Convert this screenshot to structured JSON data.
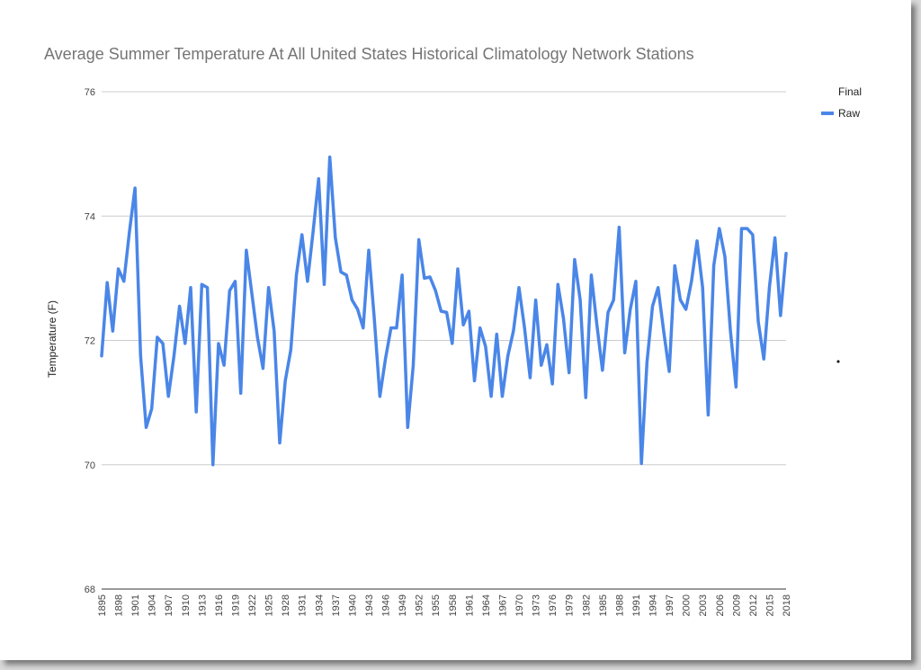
{
  "chart_data": {
    "type": "line",
    "title": "Average Summer Temperature At All United States Historical Climatology Network Stations",
    "xlabel": "",
    "ylabel": "Temperature (F)",
    "ylim": [
      68,
      76
    ],
    "yticks": [
      68,
      70,
      72,
      74,
      76
    ],
    "xticks": [
      1895,
      1898,
      1901,
      1904,
      1907,
      1910,
      1913,
      1916,
      1919,
      1922,
      1925,
      1928,
      1931,
      1934,
      1937,
      1940,
      1943,
      1946,
      1949,
      1952,
      1955,
      1958,
      1961,
      1964,
      1967,
      1970,
      1973,
      1976,
      1979,
      1982,
      1985,
      1988,
      1991,
      1994,
      1997,
      2000,
      2003,
      2006,
      2009,
      2012,
      2015,
      2018
    ],
    "grid": true,
    "legend_position": "right",
    "legend": [
      "Final",
      "Raw"
    ],
    "series": [
      {
        "name": "Raw",
        "color": "#4a86e8",
        "x": [
          1895,
          1896,
          1897,
          1898,
          1899,
          1900,
          1901,
          1902,
          1903,
          1904,
          1905,
          1906,
          1907,
          1908,
          1909,
          1910,
          1911,
          1912,
          1913,
          1914,
          1915,
          1916,
          1917,
          1918,
          1919,
          1920,
          1921,
          1922,
          1923,
          1924,
          1925,
          1926,
          1927,
          1928,
          1929,
          1930,
          1931,
          1932,
          1933,
          1934,
          1935,
          1936,
          1937,
          1938,
          1939,
          1940,
          1941,
          1942,
          1943,
          1944,
          1945,
          1946,
          1947,
          1948,
          1949,
          1950,
          1951,
          1952,
          1953,
          1954,
          1955,
          1956,
          1957,
          1958,
          1959,
          1960,
          1961,
          1962,
          1963,
          1964,
          1965,
          1966,
          1967,
          1968,
          1969,
          1970,
          1971,
          1972,
          1973,
          1974,
          1975,
          1976,
          1977,
          1978,
          1979,
          1980,
          1981,
          1982,
          1983,
          1984,
          1985,
          1986,
          1987,
          1988,
          1989,
          1990,
          1991,
          1992,
          1993,
          1994,
          1995,
          1996,
          1997,
          1998,
          1999,
          2000,
          2001,
          2002,
          2003,
          2004,
          2005,
          2006,
          2007,
          2008,
          2009,
          2010,
          2011,
          2012,
          2013,
          2014,
          2015,
          2016,
          2017,
          2018
        ],
        "values": [
          71.75,
          72.93,
          72.15,
          73.15,
          72.95,
          73.75,
          74.45,
          71.75,
          70.6,
          70.9,
          72.05,
          71.95,
          71.1,
          71.75,
          72.55,
          71.95,
          72.85,
          70.85,
          72.9,
          72.85,
          70.0,
          71.95,
          71.6,
          72.8,
          72.95,
          71.15,
          73.45,
          72.75,
          72.05,
          71.55,
          72.85,
          72.15,
          70.35,
          71.35,
          71.85,
          73.05,
          73.7,
          72.95,
          73.75,
          74.6,
          72.9,
          74.95,
          73.65,
          73.1,
          73.05,
          72.65,
          72.5,
          72.2,
          73.45,
          72.35,
          71.1,
          71.7,
          72.2,
          72.2,
          73.05,
          70.6,
          71.6,
          73.62,
          73.0,
          73.02,
          72.8,
          72.47,
          72.45,
          71.95,
          73.15,
          72.25,
          72.47,
          71.35,
          72.2,
          71.9,
          71.1,
          72.1,
          71.1,
          71.75,
          72.15,
          72.85,
          72.2,
          71.4,
          72.65,
          71.6,
          71.93,
          71.3,
          72.9,
          72.35,
          71.48,
          73.3,
          72.65,
          71.08,
          73.05,
          72.25,
          71.52,
          72.45,
          72.65,
          73.82,
          71.8,
          72.5,
          72.95,
          70.02,
          71.65,
          72.55,
          72.85,
          72.15,
          71.5,
          73.2,
          72.65,
          72.5,
          72.95,
          73.6,
          72.85,
          70.8,
          73.2,
          73.8,
          73.35,
          72.15,
          71.25,
          73.8,
          73.8,
          73.7,
          72.3,
          71.7,
          72.85,
          73.65,
          72.4,
          73.4
        ]
      }
    ]
  }
}
